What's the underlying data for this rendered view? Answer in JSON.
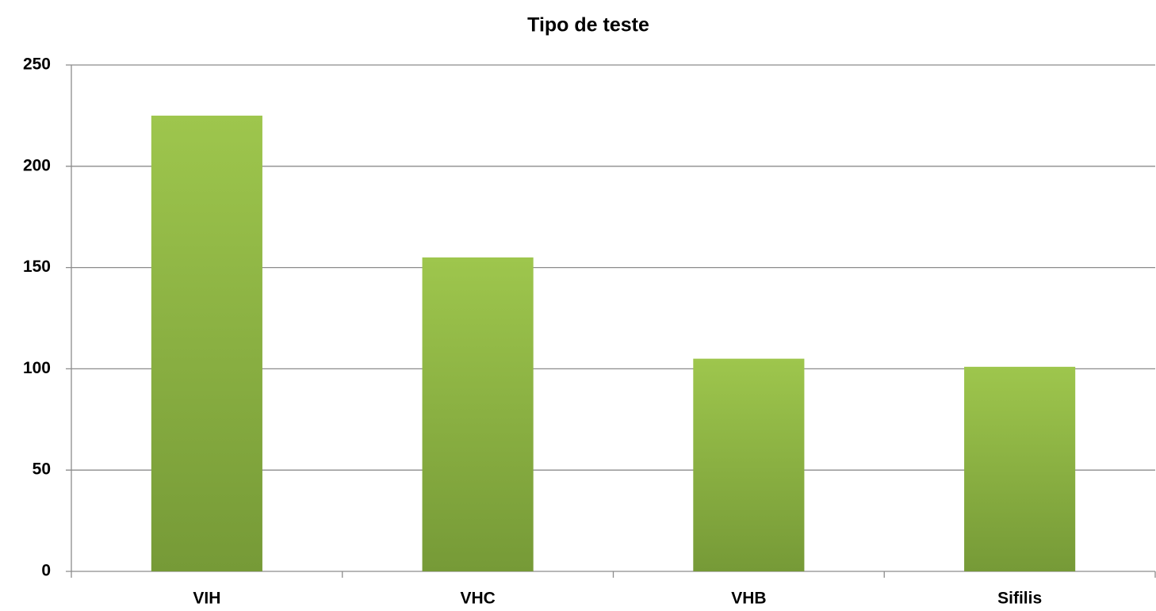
{
  "chart_data": {
    "type": "bar",
    "title": "Tipo de teste",
    "categories": [
      "VIH",
      "VHC",
      "VHB",
      "Sifilis"
    ],
    "values": [
      225,
      155,
      105,
      101
    ],
    "gradient": [
      "#9ec64d",
      "#769a37"
    ],
    "ylim": [
      0,
      250
    ],
    "yticks": [
      0,
      50,
      100,
      150,
      200,
      250
    ],
    "grid": true
  }
}
